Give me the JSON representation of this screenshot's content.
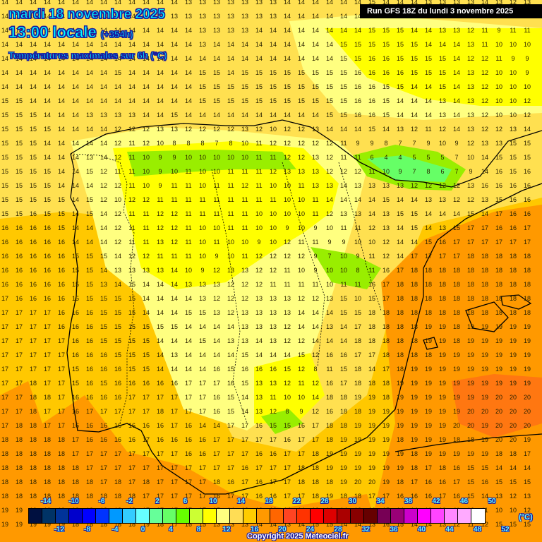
{
  "header": {
    "date": "mardi 18 novembre 2025",
    "time": "13:00 locale",
    "offset": "(+354h)",
    "variable": "Températures maximales sur 6h (°C)",
    "run": "Run GFS 18Z du lundi 3 novembre 2025"
  },
  "footer": {
    "copyright": "Copyright 2025 Meteociel.fr",
    "unit": "(°C)"
  },
  "colorbar": {
    "colors": [
      "#001040",
      "#003366",
      "#003399",
      "#0000cc",
      "#0000ff",
      "#0033ff",
      "#0099ff",
      "#33ccff",
      "#66ffff",
      "#66ff99",
      "#66ff66",
      "#66ff00",
      "#ccff33",
      "#ffff00",
      "#ffff80",
      "#ffdd55",
      "#ffcc00",
      "#ff9900",
      "#ff6600",
      "#ff4422",
      "#ff3300",
      "#ff0000",
      "#dd0000",
      "#aa0000",
      "#880000",
      "#660000",
      "#770055",
      "#990077",
      "#cc00cc",
      "#ff00ff",
      "#ff44ff",
      "#ff88ff",
      "#ffaaff",
      "#ffffff"
    ],
    "top_labels": [
      "-14",
      "-10",
      "-6",
      "-2",
      "2",
      "6",
      "10",
      "14",
      "18",
      "22",
      "26",
      "30",
      "34",
      "38",
      "42",
      "46",
      "50"
    ],
    "bottom_labels": [
      "-12",
      "-8",
      "-4",
      "0",
      "4",
      "8",
      "12",
      "16",
      "20",
      "24",
      "28",
      "32",
      "36",
      "40",
      "44",
      "48",
      "52"
    ]
  },
  "legend_colors": {
    "t7_9": "#99ee00",
    "t10_11": "#ffff00",
    "t12_13": "#ffff80",
    "t14_15": "#ffe050",
    "t16_17": "#ffc800",
    "t18_19": "#ff9900",
    "t20": "#ff7711",
    "t4_6": "#66ff66"
  },
  "grid_rows": [
    "14 14 14 14 14 14 14 14 14 14 14 14 14 13 13 13 13 13 13 13 14 14 14 14 14 14 15 14 14 14 13 13 13 13 14 13 12 13",
    "14 14 14 14 14 14 14 14 14 14 14 13 13 13 13 13 13 13 13 13 14 14 14 14 14 14 15 15 14 14 13 13 12 11 10 12 11 11",
    "14 14 14 14 14 14 14 14 14 14 14 14 14 14 13 13 13 13 14 14 14 14 14 14 14 14 15 15 15 14 14 13 13 12 11 9 11 11",
    "14 14 14 14 14 14 14 14 14 14 14 14 14 14 13 14 14 14 14 14 14 14 14 14 15 15 15 15 15 15 14 14 14 13 11 10 10 10",
    "14 14 14 14 14 14 14 14 14 14 14 14 14 14 14 14 14 14 14 14 14 14 14 14 15 15 16 16 15 15 15 15 14 12 12 11 9 9",
    "14 14 14 14 14 14 14 14 15 14 14 14 14 14 15 15 14 15 15 15 15 15 15 15 15 16 16 16 16 15 15 15 14 13 12 10 10 9",
    "14 14 14 14 14 14 14 14 14 14 14 14 14 14 15 15 15 15 15 15 15 15 15 15 15 16 16 15 15 14 14 15 14 13 12 10 10 10",
    "15 15 14 14 14 14 14 14 14 14 14 14 14 14 15 15 15 15 15 15 15 15 15 15 15 16 16 15 14 14 14 13 14 13 12 10 10 12",
    "15 15 15 14 14 14 13 13 13 13 14 14 15 14 14 14 14 14 14 14 14 14 14 15 15 16 16 15 14 14 14 13 14 13 12 10 10 12",
    "15 15 15 15 14 14 14 14 12 12 12 13 13 12 12 12 12 13 12 10 12 12 13 14 14 14 15 14 13 12 11 12 14 13 12 12 13 14",
    "15 15 15 14 14 14 14 14 12 11 12 10 8 8 8 7 8 10 11 12 12 12 12 12 11 9 9 8 7 7 9 10 9 12 13 13 15 15",
    "15 15 15 14 14 14 13 14 12 11 10 9 9 10 10 10 10 10 11 11 12 12 13 12 11 11 6 4 4 5 5 5 7 10 14 15 15 15",
    "15 15 15 15 14 14 15 12 11 11 10 9 10 11 10 10 11 11 11 12 13 13 13 12 12 12 11 10 9 7 8 6 7 9 14 16 15 16",
    "15 15 15 15 14 14 14 12 12 11 10 9 11 11 10 11 11 12 11 10 10 11 13 13 14 13 13 13 13 12 12 12 12 13 16 16 16 16",
    "15 15 15 15 15 14 15 12 10 12 12 11 11 11 11 11 11 11 11 11 10 10 11 14 14 14 14 15 14 14 13 13 12 12 13 15 16 16",
    "15 15 16 15 15 14 15 14 12 11 11 12 12 11 11 11 11 11 10 10 10 10 11 12 13 13 14 13 15 15 14 14 14 15 14 17 16 16",
    "16 16 16 16 15 14 14 14 12 11 11 12 12 11 10 10 11 11 10 10 9 10 9 10 11 11 12 13 14 15 14 13 15 17 17 16 16 17",
    "16 16 16 16 16 14 14 14 12 11 11 13 12 11 10 11 10 10 9 10 12 11 11 9 9 10 10 12 14 14 15 16 17 17 17 17 17 17",
    "16 16 16 16 16 15 15 15 14 12 12 11 11 11 10 9 10 11 12 12 12 12 9 7 10 9 11 12 14 17 17 17 17 18 18 18 18 18",
    "16 16 16 16 16 15 15 14 13 13 13 13 14 10 9 12 13 13 12 12 11 10 9 10 10 8 11 16 17 18 18 18 18 18 18 18 18 18",
    "16 16 16 16 16 15 15 13 14 15 14 14 14 13 13 13 12 12 12 11 11 11 11 10 11 11 16 17 18 18 18 18 18 18 18 18 18 18",
    "17 16 16 16 16 15 15 15 15 15 14 14 14 14 13 12 12 12 13 13 13 12 12 13 15 10 15 17 18 18 18 18 18 18 18 18 18 18",
    "17 17 17 17 16 16 16 15 15 15 14 14 14 15 15 13 12 13 13 13 13 14 14 14 15 15 18 18 18 18 18 18 18 18 18 18 18 18",
    "17 17 17 17 16 16 16 15 15 15 15 15 15 14 14 14 14 13 13 13 12 14 14 13 14 17 18 18 18 18 19 19 18 19 19 19 19 19",
    "17 17 17 17 17 16 16 15 15 15 15 14 14 14 15 14 13 13 14 13 12 12 14 14 14 18 18 18 18 18 19 19 18 19 19 19 19 19",
    "17 17 17 17 17 16 16 16 15 15 15 14 13 14 14 14 14 15 14 14 14 15 12 16 16 17 17 18 18 18 18 19 19 19 19 19 19 19",
    "17 17 17 17 17 15 16 16 16 15 15 14 14 14 14 16 15 16 16 16 15 12 8 11 15 18 14 17 18 19 19 19 19 19 19 19 19 19",
    "17 17 18 17 17 15 16 15 16 16 16 16 16 17 17 17 16 15 13 13 12 11 12 16 17 18 18 18 19 19 19 19 19 19 19 19 19 19",
    "17 17 18 18 17 16 16 16 16 17 17 17 17 17 17 16 15 14 13 11 10 10 14 18 18 19 19 18 19 19 19 19 19 19 19 20 20 20",
    "17 17 18 17 17 16 17 17 17 17 17 18 17 17 17 16 15 14 13 12 8 9 12 16 18 18 19 19 19 19 19 19 19 20 20 20 20 20",
    "17 18 18 17 17 16 16 16 16 16 16 16 17 16 14 14 17 17 16 15 15 16 17 18 18 19 19 19 19 19 19 19 20 20 19 20 20 20",
    "18 18 18 18 18 17 16 16 16 16 17 16 16 16 16 17 17 17 17 17 16 17 17 18 19 19 19 19 18 19 19 19 18 18 19 20 20 19",
    "18 18 18 18 18 17 17 17 17 17 17 17 17 16 16 17 17 17 16 16 17 17 18 19 19 19 19 19 19 18 19 19 19 19 19 18 18 17",
    "18 18 18 18 18 18 17 17 17 17 17 17 17 17 17 17 17 16 17 17 17 18 18 19 19 19 19 19 19 18 17 18 16 15 15 14 14 14",
    "18 18 18 18 18 18 18 17 18 17 18 17 17 17 17 18 16 17 16 17 17 18 18 18 19 20 20 19 18 17 16 16 17 15 16 15 15 15",
    "18 18 18 18 18 18 18 18 18 18 17 17 17 17 17 16 17 17 16 16 17 17 18 19 18 18 17 17 16 16 16 17 16 15 14 13 12 13",
    "19 19 19 19 19 18 18 18 18 18 17 17 17 17 17 15 14 13 13 13 14 14 13 13 14 13 16 15 14 14 13 12 11 12 11 10 10 12",
    "19 19 19 19 19 18 18 18 18 18 19 18 17 16 15 13 13 13 14 14 13 14 15 15 14 14 13 16 15 14 14 13 12 11 12 15 15 15"
  ]
}
